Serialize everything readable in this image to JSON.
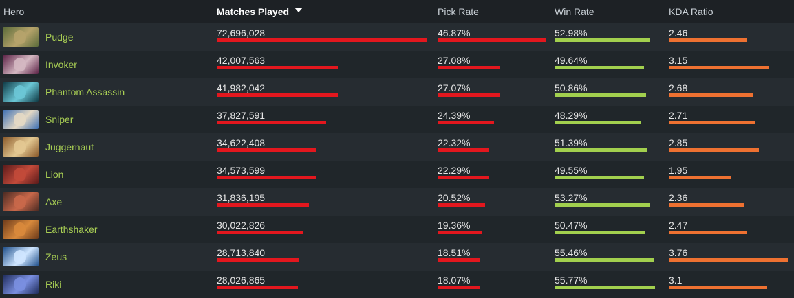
{
  "columns": {
    "hero": "Hero",
    "matches": "Matches Played",
    "pick": "Pick Rate",
    "win": "Win Rate",
    "kda": "KDA Ratio"
  },
  "colors": {
    "name": "#a9cf54",
    "matches_bar": "#e3171e",
    "pick_bar": "#e3171e",
    "win_bar": "#a2d04e",
    "kda_bar": "#ee7131"
  },
  "rows": [
    {
      "hero": "Pudge",
      "portrait": [
        "#5b6b3a",
        "#b6a36b"
      ],
      "matches": "72,696,028",
      "matches_val": 72696028,
      "pick": "46.87%",
      "pick_val": 46.87,
      "win": "52.98%",
      "win_val": 52.98,
      "kda": "2.46",
      "kda_val": 2.46
    },
    {
      "hero": "Invoker",
      "portrait": [
        "#5b2145",
        "#d4b8c2"
      ],
      "matches": "42,007,563",
      "matches_val": 42007563,
      "pick": "27.08%",
      "pick_val": 27.08,
      "win": "49.64%",
      "win_val": 49.64,
      "kda": "3.15",
      "kda_val": 3.15
    },
    {
      "hero": "Phantom Assassin",
      "portrait": [
        "#0f3a45",
        "#6bc7d6"
      ],
      "matches": "41,982,042",
      "matches_val": 41982042,
      "pick": "27.07%",
      "pick_val": 27.07,
      "win": "50.86%",
      "win_val": 50.86,
      "kda": "2.68",
      "kda_val": 2.68
    },
    {
      "hero": "Sniper",
      "portrait": [
        "#3d6fb3",
        "#e4d9c4"
      ],
      "matches": "37,827,591",
      "matches_val": 37827591,
      "pick": "24.39%",
      "pick_val": 24.39,
      "win": "48.29%",
      "win_val": 48.29,
      "kda": "2.71",
      "kda_val": 2.71
    },
    {
      "hero": "Juggernaut",
      "portrait": [
        "#8b5a2b",
        "#e3c892"
      ],
      "matches": "34,622,408",
      "matches_val": 34622408,
      "pick": "22.32%",
      "pick_val": 22.32,
      "win": "51.39%",
      "win_val": 51.39,
      "kda": "2.85",
      "kda_val": 2.85
    },
    {
      "hero": "Lion",
      "portrait": [
        "#5a1a1a",
        "#c24a3a"
      ],
      "matches": "34,573,599",
      "matches_val": 34573599,
      "pick": "22.29%",
      "pick_val": 22.29,
      "win": "49.55%",
      "win_val": 49.55,
      "kda": "1.95",
      "kda_val": 1.95
    },
    {
      "hero": "Axe",
      "portrait": [
        "#4a2a22",
        "#c9684a"
      ],
      "matches": "31,836,195",
      "matches_val": 31836195,
      "pick": "20.52%",
      "pick_val": 20.52,
      "win": "53.27%",
      "win_val": 53.27,
      "kda": "2.36",
      "kda_val": 2.36
    },
    {
      "hero": "Earthshaker",
      "portrait": [
        "#6b3a1a",
        "#d98a3c"
      ],
      "matches": "30,022,826",
      "matches_val": 30022826,
      "pick": "19.36%",
      "pick_val": 19.36,
      "win": "50.47%",
      "win_val": 50.47,
      "kda": "2.47",
      "kda_val": 2.47
    },
    {
      "hero": "Zeus",
      "portrait": [
        "#1f4f8a",
        "#cfe6ff"
      ],
      "matches": "28,713,840",
      "matches_val": 28713840,
      "pick": "18.51%",
      "pick_val": 18.51,
      "win": "55.46%",
      "win_val": 55.46,
      "kda": "3.76",
      "kda_val": 3.76
    },
    {
      "hero": "Riki",
      "portrait": [
        "#1e2b5a",
        "#7a8fe0"
      ],
      "matches": "28,026,865",
      "matches_val": 28026865,
      "pick": "18.07%",
      "pick_val": 18.07,
      "win": "55.77%",
      "win_val": 55.77,
      "kda": "3.1",
      "kda_val": 3.1
    }
  ]
}
